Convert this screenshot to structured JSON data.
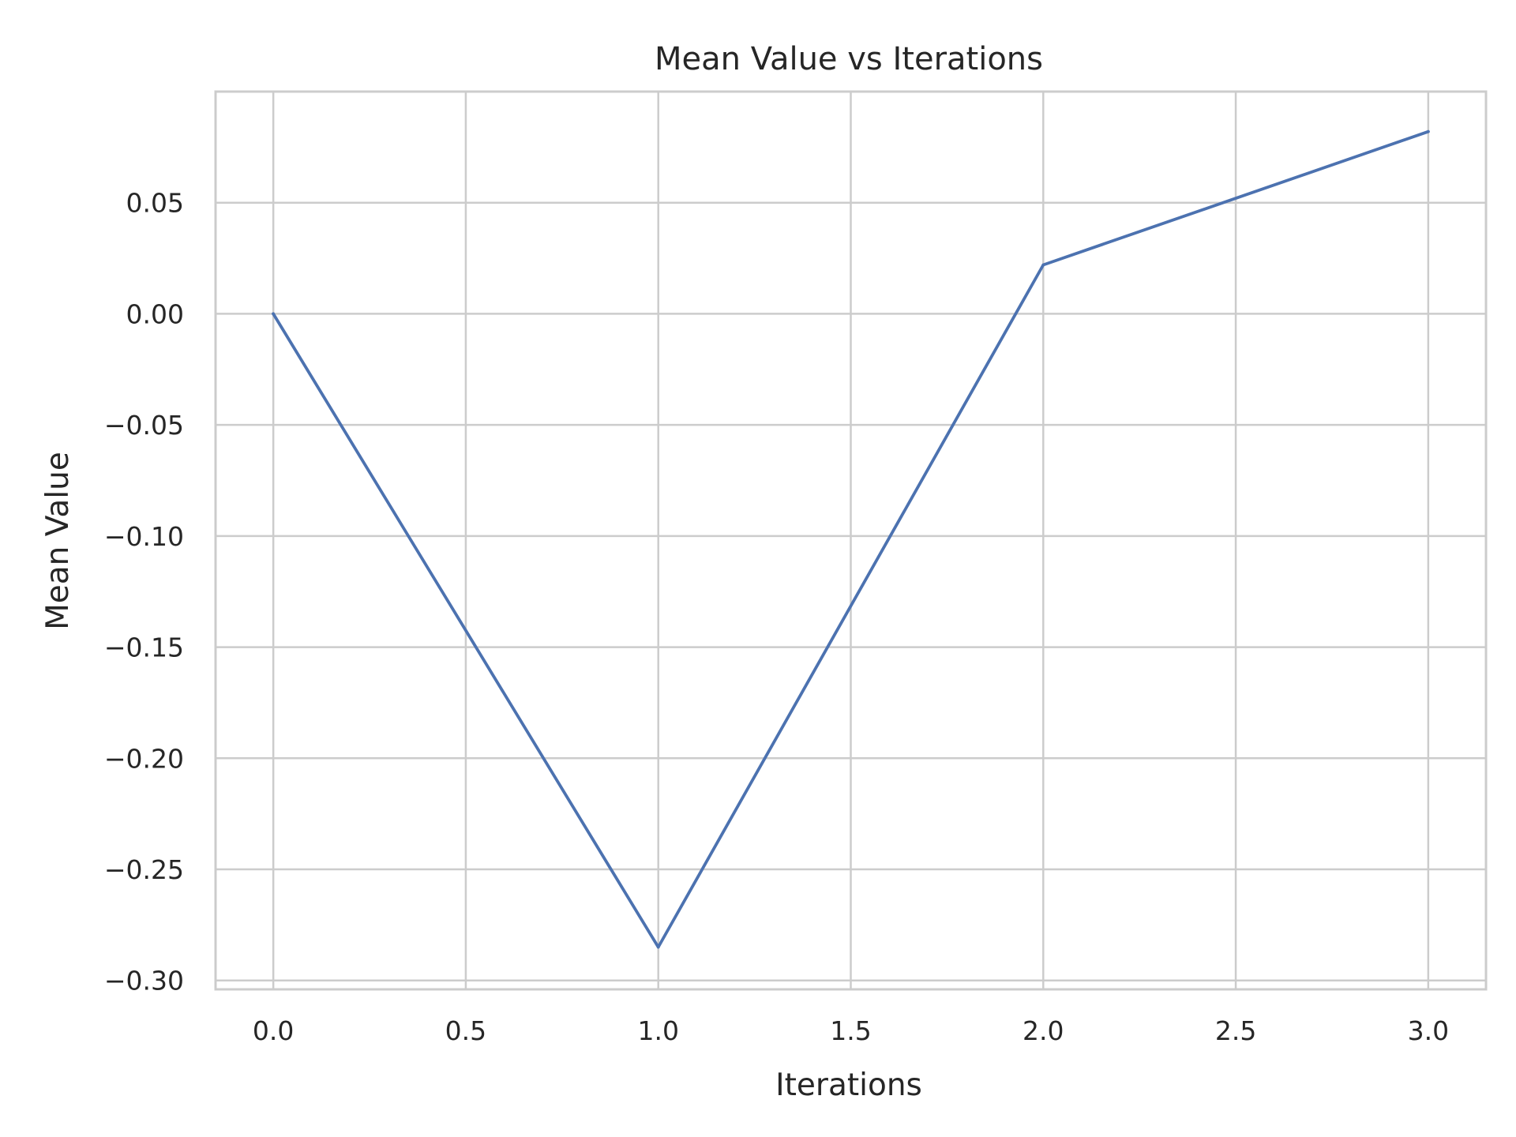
{
  "chart_data": {
    "type": "line",
    "title": "Mean Value vs Iterations",
    "xlabel": "Iterations",
    "ylabel": "Mean Value",
    "x": [
      0,
      1,
      2,
      3
    ],
    "series": [
      {
        "values": [
          0.0,
          -0.285,
          0.022,
          0.082
        ]
      }
    ],
    "xlim": [
      -0.15,
      3.15
    ],
    "ylim": [
      -0.304,
      0.1
    ],
    "xticks": [
      0.0,
      0.5,
      1.0,
      1.5,
      2.0,
      2.5,
      3.0
    ],
    "xtick_labels": [
      "0.0",
      "0.5",
      "1.0",
      "1.5",
      "2.0",
      "2.5",
      "3.0"
    ],
    "yticks": [
      0.05,
      0.0,
      -0.05,
      -0.1,
      -0.15,
      -0.2,
      -0.25,
      -0.3
    ],
    "ytick_labels": [
      "0.05",
      "0.00",
      "−0.05",
      "−0.10",
      "−0.15",
      "−0.20",
      "−0.25",
      "−0.30"
    ],
    "grid": true,
    "legend": "none",
    "colors": {
      "series": "#4c72b0",
      "grid": "#cccccc",
      "text": "#262626"
    }
  }
}
